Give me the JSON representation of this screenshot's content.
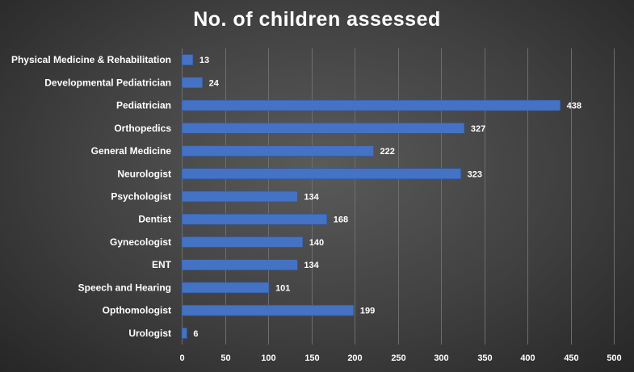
{
  "chart_data": {
    "type": "bar",
    "orientation": "horizontal",
    "title": "No. of children assessed",
    "categories": [
      "Physical Medicine & Rehabilitation",
      "Developmental Pediatrician",
      "Pediatrician",
      "Orthopedics",
      "General Medicine",
      "Neurologist",
      "Psychologist",
      "Dentist",
      "Gynecologist",
      "ENT",
      "Speech and Hearing",
      "Opthomologist",
      "Urologist"
    ],
    "values": [
      13,
      24,
      438,
      327,
      222,
      323,
      134,
      168,
      140,
      134,
      101,
      199,
      6
    ],
    "xticks": [
      0,
      50,
      100,
      150,
      200,
      250,
      300,
      350,
      400,
      450,
      500
    ],
    "xlim": [
      0,
      500
    ],
    "grid": true,
    "legend": "none",
    "colors": {
      "bar": "#4472c4",
      "bar_edge": "#2f5597",
      "text": "#ffffff",
      "grid": "#6e6e6e"
    }
  }
}
